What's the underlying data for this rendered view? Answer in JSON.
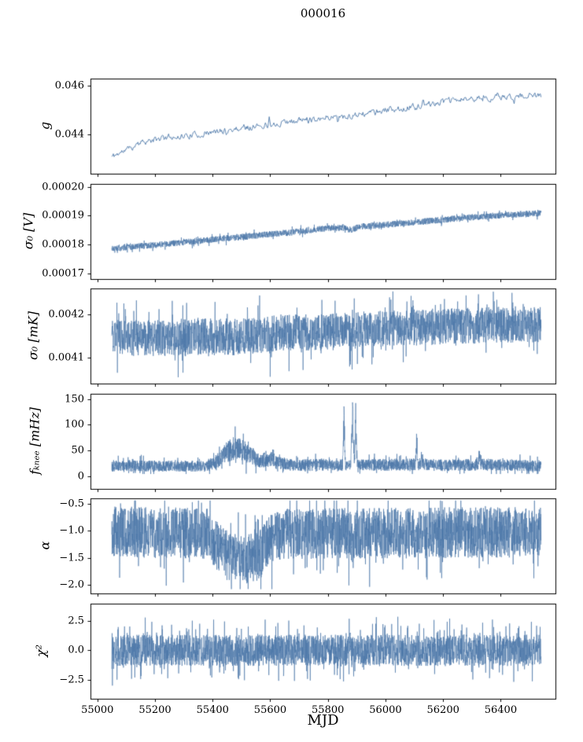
{
  "title": "000016",
  "chart_data": {
    "type": "line",
    "title": "000016",
    "xlabel": "MJD",
    "line_color": "#4c77a8",
    "axis_color": "#000000",
    "x_range": [
      55050,
      56540
    ],
    "xlim": [
      54976,
      56590
    ],
    "xticks": [
      55000,
      55200,
      55400,
      55600,
      55800,
      56000,
      56200,
      56400
    ],
    "xtick_labels": [
      "55000",
      "55200",
      "55400",
      "55600",
      "55800",
      "56000",
      "56200",
      "56400"
    ],
    "panels": [
      {
        "name": "gain",
        "ylabel": "g",
        "ylim": [
          0.0424,
          0.0463
        ],
        "ytick_values": [
          0.044,
          0.046
        ],
        "ytick_labels": [
          "0.044",
          "0.046"
        ],
        "style": "walk",
        "points": 560,
        "noise": 0.00012,
        "excess": 0.03,
        "seed": 11,
        "trend": [
          [
            55050,
            0.0431
          ],
          [
            55150,
            0.04365
          ],
          [
            55250,
            0.0439
          ],
          [
            55350,
            0.044
          ],
          [
            55420,
            0.04412
          ],
          [
            55500,
            0.04428
          ],
          [
            55600,
            0.04442
          ],
          [
            55700,
            0.04458
          ],
          [
            55800,
            0.04472
          ],
          [
            55900,
            0.04478
          ],
          [
            56000,
            0.045
          ],
          [
            56100,
            0.04515
          ],
          [
            56200,
            0.04535
          ],
          [
            56300,
            0.04548
          ],
          [
            56400,
            0.04552
          ],
          [
            56520,
            0.04558
          ]
        ],
        "spikes": [
          {
            "x": 55597,
            "h": 0.00035,
            "w": 5
          },
          {
            "x": 55835,
            "h": -0.00035,
            "w": 4
          },
          {
            "x": 55958,
            "h": 0.00028,
            "w": 4
          },
          {
            "x": 55880,
            "h": -0.0002,
            "w": 3
          }
        ]
      },
      {
        "name": "sigma0-volts",
        "ylabel": "σ₀ [V]",
        "ylim": [
          0.000168,
          0.000201
        ],
        "ytick_values": [
          0.00017,
          0.00018,
          0.00019,
          0.0002
        ],
        "ytick_labels": [
          "0.00017",
          "0.00018",
          "0.00019",
          "0.00020"
        ],
        "style": "band",
        "points": 2600,
        "noise": 1.1e-06,
        "excess": 0.06,
        "seed": 22,
        "trend": [
          [
            55050,
            0.0001786
          ],
          [
            55200,
            0.0001798
          ],
          [
            55350,
            0.0001812
          ],
          [
            55500,
            0.0001826
          ],
          [
            55650,
            0.000184
          ],
          [
            55800,
            0.0001856
          ],
          [
            55850,
            0.0001858
          ],
          [
            55880,
            0.000185
          ],
          [
            55910,
            0.0001862
          ],
          [
            56050,
            0.0001872
          ],
          [
            56200,
            0.0001886
          ],
          [
            56350,
            0.0001898
          ],
          [
            56520,
            0.0001908
          ]
        ],
        "spikes": []
      },
      {
        "name": "sigma0-millikelvin",
        "ylabel": "σ₀ [mK]",
        "ylim": [
          0.00404,
          0.00426
        ],
        "ytick_values": [
          0.0041,
          0.0042
        ],
        "ytick_labels": [
          "0.0041",
          "0.0042"
        ],
        "style": "band",
        "points": 2600,
        "noise": 4.2e-05,
        "excess": 0.07,
        "seed": 33,
        "trend": [
          [
            55050,
            0.004146
          ],
          [
            55250,
            0.004145
          ],
          [
            55420,
            0.00415
          ],
          [
            55470,
            0.004147
          ],
          [
            55560,
            0.004152
          ],
          [
            55650,
            0.004158
          ],
          [
            55750,
            0.004158
          ],
          [
            55850,
            0.004162
          ],
          [
            55950,
            0.004166
          ],
          [
            56100,
            0.00417
          ],
          [
            56250,
            0.004173
          ],
          [
            56400,
            0.004176
          ],
          [
            56520,
            0.004178
          ]
        ],
        "spikes": [
          {
            "x": 55878,
            "h": -6e-05,
            "w": 6
          },
          {
            "x": 55893,
            "h": -5e-05,
            "w": 4
          },
          {
            "x": 56095,
            "h": 5e-05,
            "w": 4
          },
          {
            "x": 55600,
            "h": -4e-05,
            "w": 4
          }
        ]
      },
      {
        "name": "knee-frequency",
        "ylabel": "fₖₙₑₑ [mHz]",
        "ylim": [
          -25,
          160
        ],
        "ytick_values": [
          0,
          50,
          100,
          150
        ],
        "ytick_labels": [
          "0",
          "50",
          "100",
          "150"
        ],
        "style": "band",
        "points": 3000,
        "noise": 11,
        "noise_ref": 20,
        "excess": 0.07,
        "clip_lo": 4,
        "clip_hi": 156,
        "seed": 44,
        "trend": [
          [
            55050,
            20
          ],
          [
            55380,
            19
          ],
          [
            55420,
            30
          ],
          [
            55450,
            48
          ],
          [
            55480,
            55
          ],
          [
            55520,
            45
          ],
          [
            55560,
            30
          ],
          [
            55590,
            33
          ],
          [
            55620,
            26
          ],
          [
            55680,
            21
          ],
          [
            55800,
            22
          ],
          [
            55900,
            21
          ],
          [
            56000,
            22
          ],
          [
            56100,
            23
          ],
          [
            56200,
            21
          ],
          [
            56350,
            22
          ],
          [
            56520,
            20
          ]
        ],
        "spikes": [
          {
            "x": 55608,
            "h": 18,
            "w": 10
          },
          {
            "x": 55856,
            "h": 115,
            "w": 5
          },
          {
            "x": 55886,
            "h": 135,
            "w": 7
          },
          {
            "x": 55897,
            "h": 130,
            "w": 5
          },
          {
            "x": 56108,
            "h": 52,
            "w": 5
          },
          {
            "x": 56326,
            "h": 26,
            "w": 5
          }
        ]
      },
      {
        "name": "alpha",
        "ylabel": "α",
        "ylim": [
          -2.16,
          -0.4
        ],
        "ytick_values": [
          -0.5,
          -1.0,
          -1.5,
          -2.0
        ],
        "ytick_labels": [
          "−0.5",
          "−1.0",
          "−1.5",
          "−2.0"
        ],
        "style": "band",
        "points": 2800,
        "noise": 0.47,
        "excess": 0.05,
        "clip_lo": -2.08,
        "clip_hi": -0.44,
        "seed": 55,
        "trend": [
          [
            55050,
            -1.02
          ],
          [
            55380,
            -1.05
          ],
          [
            55420,
            -1.3
          ],
          [
            55460,
            -1.5
          ],
          [
            55500,
            -1.55
          ],
          [
            55560,
            -1.45
          ],
          [
            55600,
            -1.18
          ],
          [
            55640,
            -1.05
          ],
          [
            55900,
            -1.05
          ],
          [
            56520,
            -1.02
          ]
        ],
        "spikes": [
          {
            "x": 55886,
            "h": -0.5,
            "w": 5
          }
        ]
      },
      {
        "name": "chi-squared",
        "ylabel": "χ²",
        "ylim": [
          -4.1,
          3.95
        ],
        "ytick_values": [
          -2.5,
          0.0,
          2.5
        ],
        "ytick_labels": [
          "−2.5",
          "0.0",
          "2.5"
        ],
        "style": "band",
        "points": 2800,
        "noise": 1.32,
        "excess": 0.12,
        "clip_lo": -3.05,
        "clip_hi": 3.05,
        "seed": 66,
        "trend": [
          [
            55050,
            0
          ],
          [
            56520,
            0
          ]
        ],
        "spikes": [
          {
            "x": 55877,
            "h": 1.2,
            "w": 3
          },
          {
            "x": 55890,
            "h": -1.2,
            "w": 3
          }
        ]
      }
    ]
  }
}
